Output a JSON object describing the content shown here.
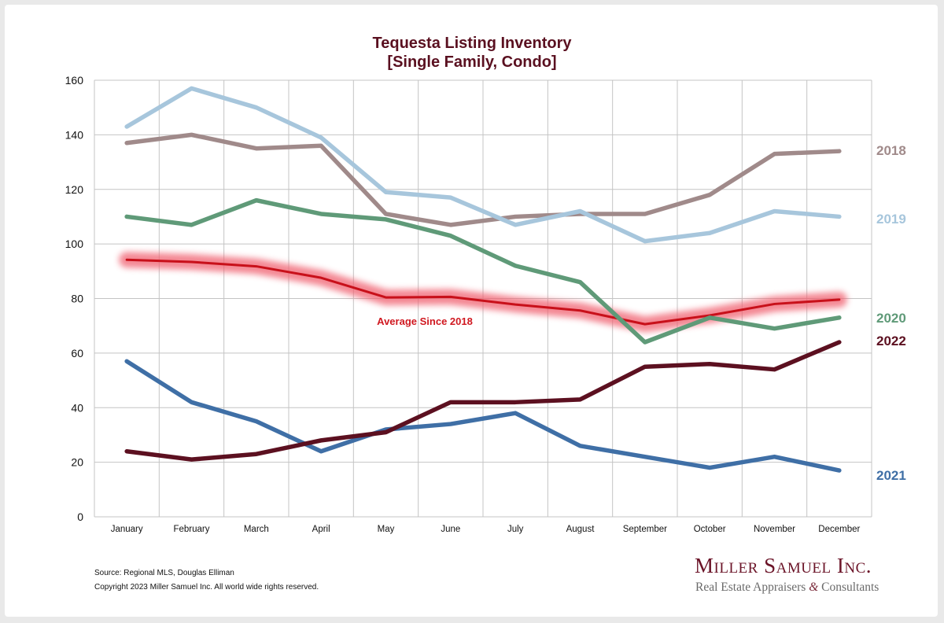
{
  "chart_data": {
    "type": "line",
    "title_line1": "Tequesta Listing Inventory",
    "title_line2": "[Single Family, Condo]",
    "categories": [
      "January",
      "February",
      "March",
      "April",
      "May",
      "June",
      "July",
      "August",
      "September",
      "October",
      "November",
      "December"
    ],
    "ylim": [
      0,
      160
    ],
    "yticks": [
      0,
      20,
      40,
      60,
      80,
      100,
      120,
      140,
      160
    ],
    "grid": true,
    "series": [
      {
        "name": "2018",
        "color": "#a08a8a",
        "values": [
          137,
          140,
          135,
          136,
          111,
          107,
          110,
          111,
          111,
          118,
          133,
          134
        ]
      },
      {
        "name": "2019",
        "color": "#a7c6dc",
        "values": [
          143,
          157,
          150,
          139,
          119,
          117,
          107,
          112,
          101,
          104,
          112,
          110
        ]
      },
      {
        "name": "2020",
        "color": "#5f9a78",
        "values": [
          110,
          107,
          116,
          111,
          109,
          103,
          92,
          86,
          64,
          73,
          69,
          73
        ]
      },
      {
        "name": "2021",
        "color": "#3f6fa6",
        "values": [
          57,
          42,
          35,
          24,
          32,
          34,
          38,
          26,
          22,
          18,
          22,
          17
        ]
      },
      {
        "name": "2022",
        "color": "#5c1020",
        "values": [
          24,
          21,
          23,
          28,
          31,
          42,
          42,
          43,
          55,
          56,
          54,
          64
        ]
      }
    ],
    "average": {
      "label": "Average  Since 2018",
      "color": "#d01820",
      "values": [
        94.2,
        93.4,
        91.8,
        87.6,
        80.4,
        80.6,
        77.8,
        75.6,
        70.6,
        73.8,
        78.0,
        79.6
      ]
    }
  },
  "footer": {
    "source": "Source: Regional MLS, Douglas Elliman",
    "copyright": "Copyright 2023 Miller Samuel Inc.  All world wide rights reserved."
  },
  "brand": {
    "name": "Miller Samuel Inc.",
    "tagline_part1": "Real Estate Appraisers ",
    "tagline_amp": "&",
    "tagline_part2": " Consultants"
  }
}
